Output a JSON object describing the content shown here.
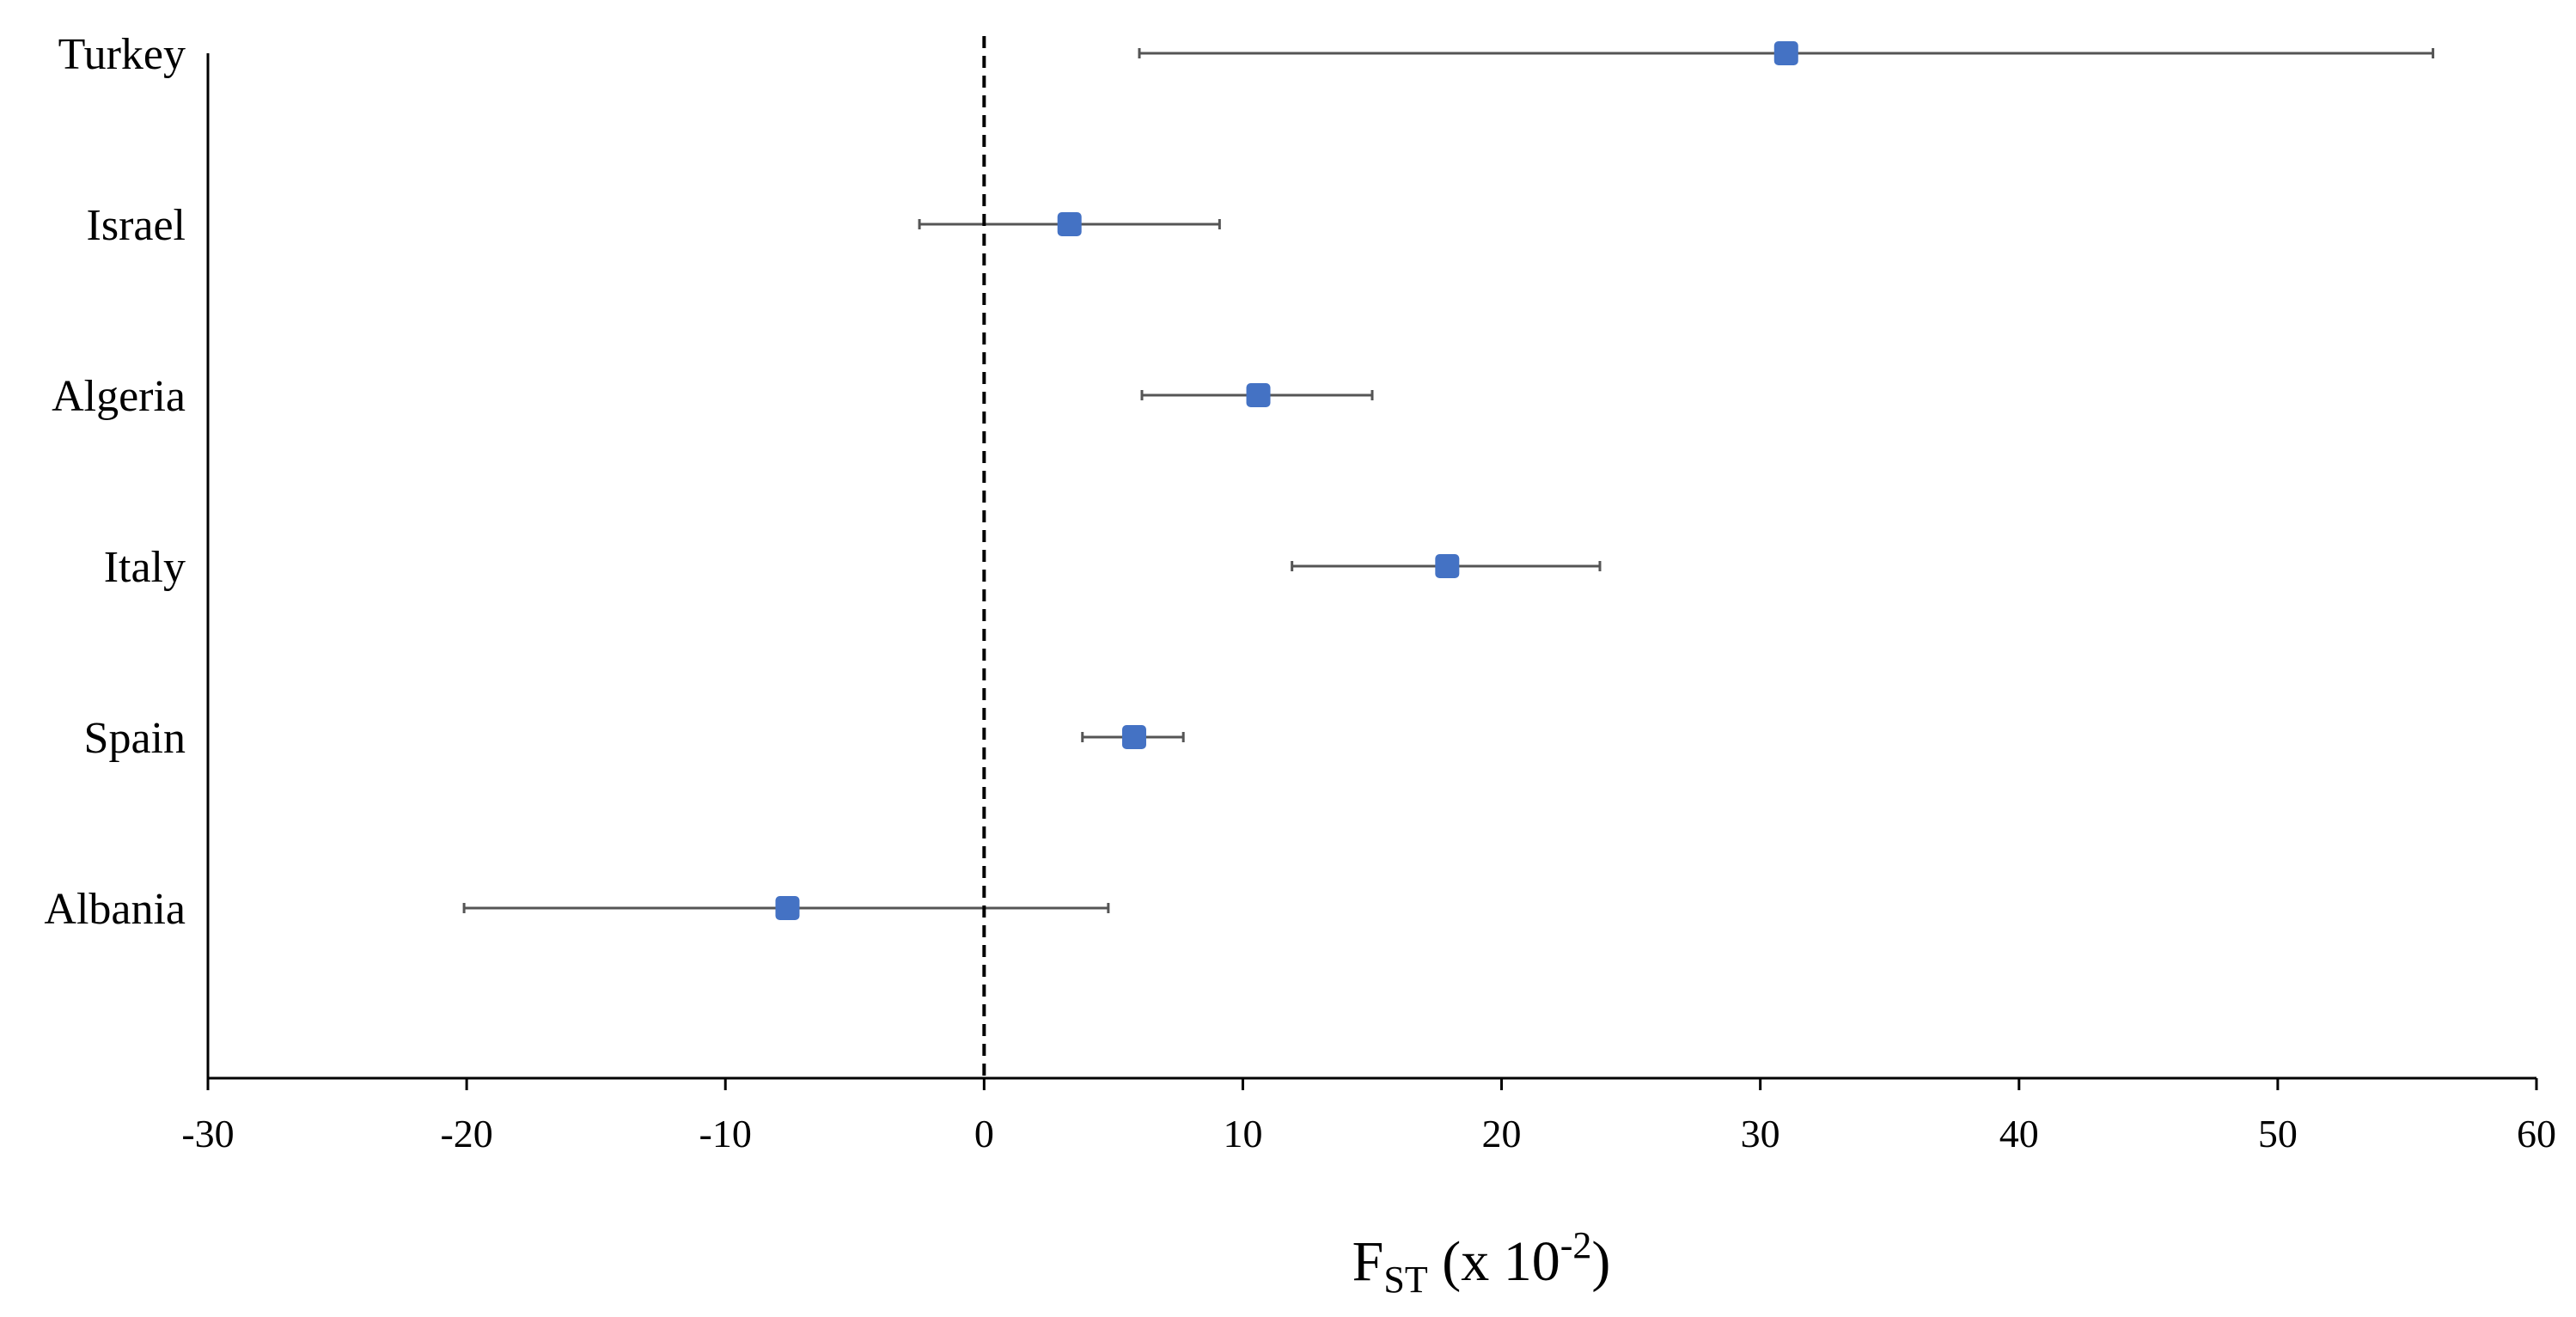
{
  "chart_data": {
    "type": "scatter",
    "orientation": "horizontal",
    "categories": [
      "Turkey",
      "Israel",
      "Algeria",
      "Italy",
      "Spain",
      "Albania"
    ],
    "values": [
      31.0,
      3.3,
      10.6,
      17.9,
      5.8,
      -7.6
    ],
    "error_low": [
      6.0,
      -2.5,
      6.1,
      11.9,
      3.8,
      -20.1
    ],
    "error_high": [
      56.0,
      9.1,
      15.0,
      23.8,
      7.7,
      4.8
    ],
    "xlim": [
      -30,
      60
    ],
    "xticks": [
      "-30",
      "-20",
      "-10",
      "0",
      "10",
      "20",
      "30",
      "40",
      "50",
      "60"
    ],
    "xtick_values": [
      -30,
      -20,
      -10,
      0,
      10,
      20,
      30,
      40,
      50,
      60
    ],
    "xlabel": {
      "main": "F",
      "subscript": "ST",
      "paren_open": " (x 10",
      "superscript": "-2",
      "paren_close": ")"
    },
    "reference_line": {
      "x": 0,
      "style": "dashed"
    },
    "grid": false,
    "colors": {
      "marker": "#4472c4",
      "error_bar": "#555555",
      "axis": "#000000"
    }
  }
}
